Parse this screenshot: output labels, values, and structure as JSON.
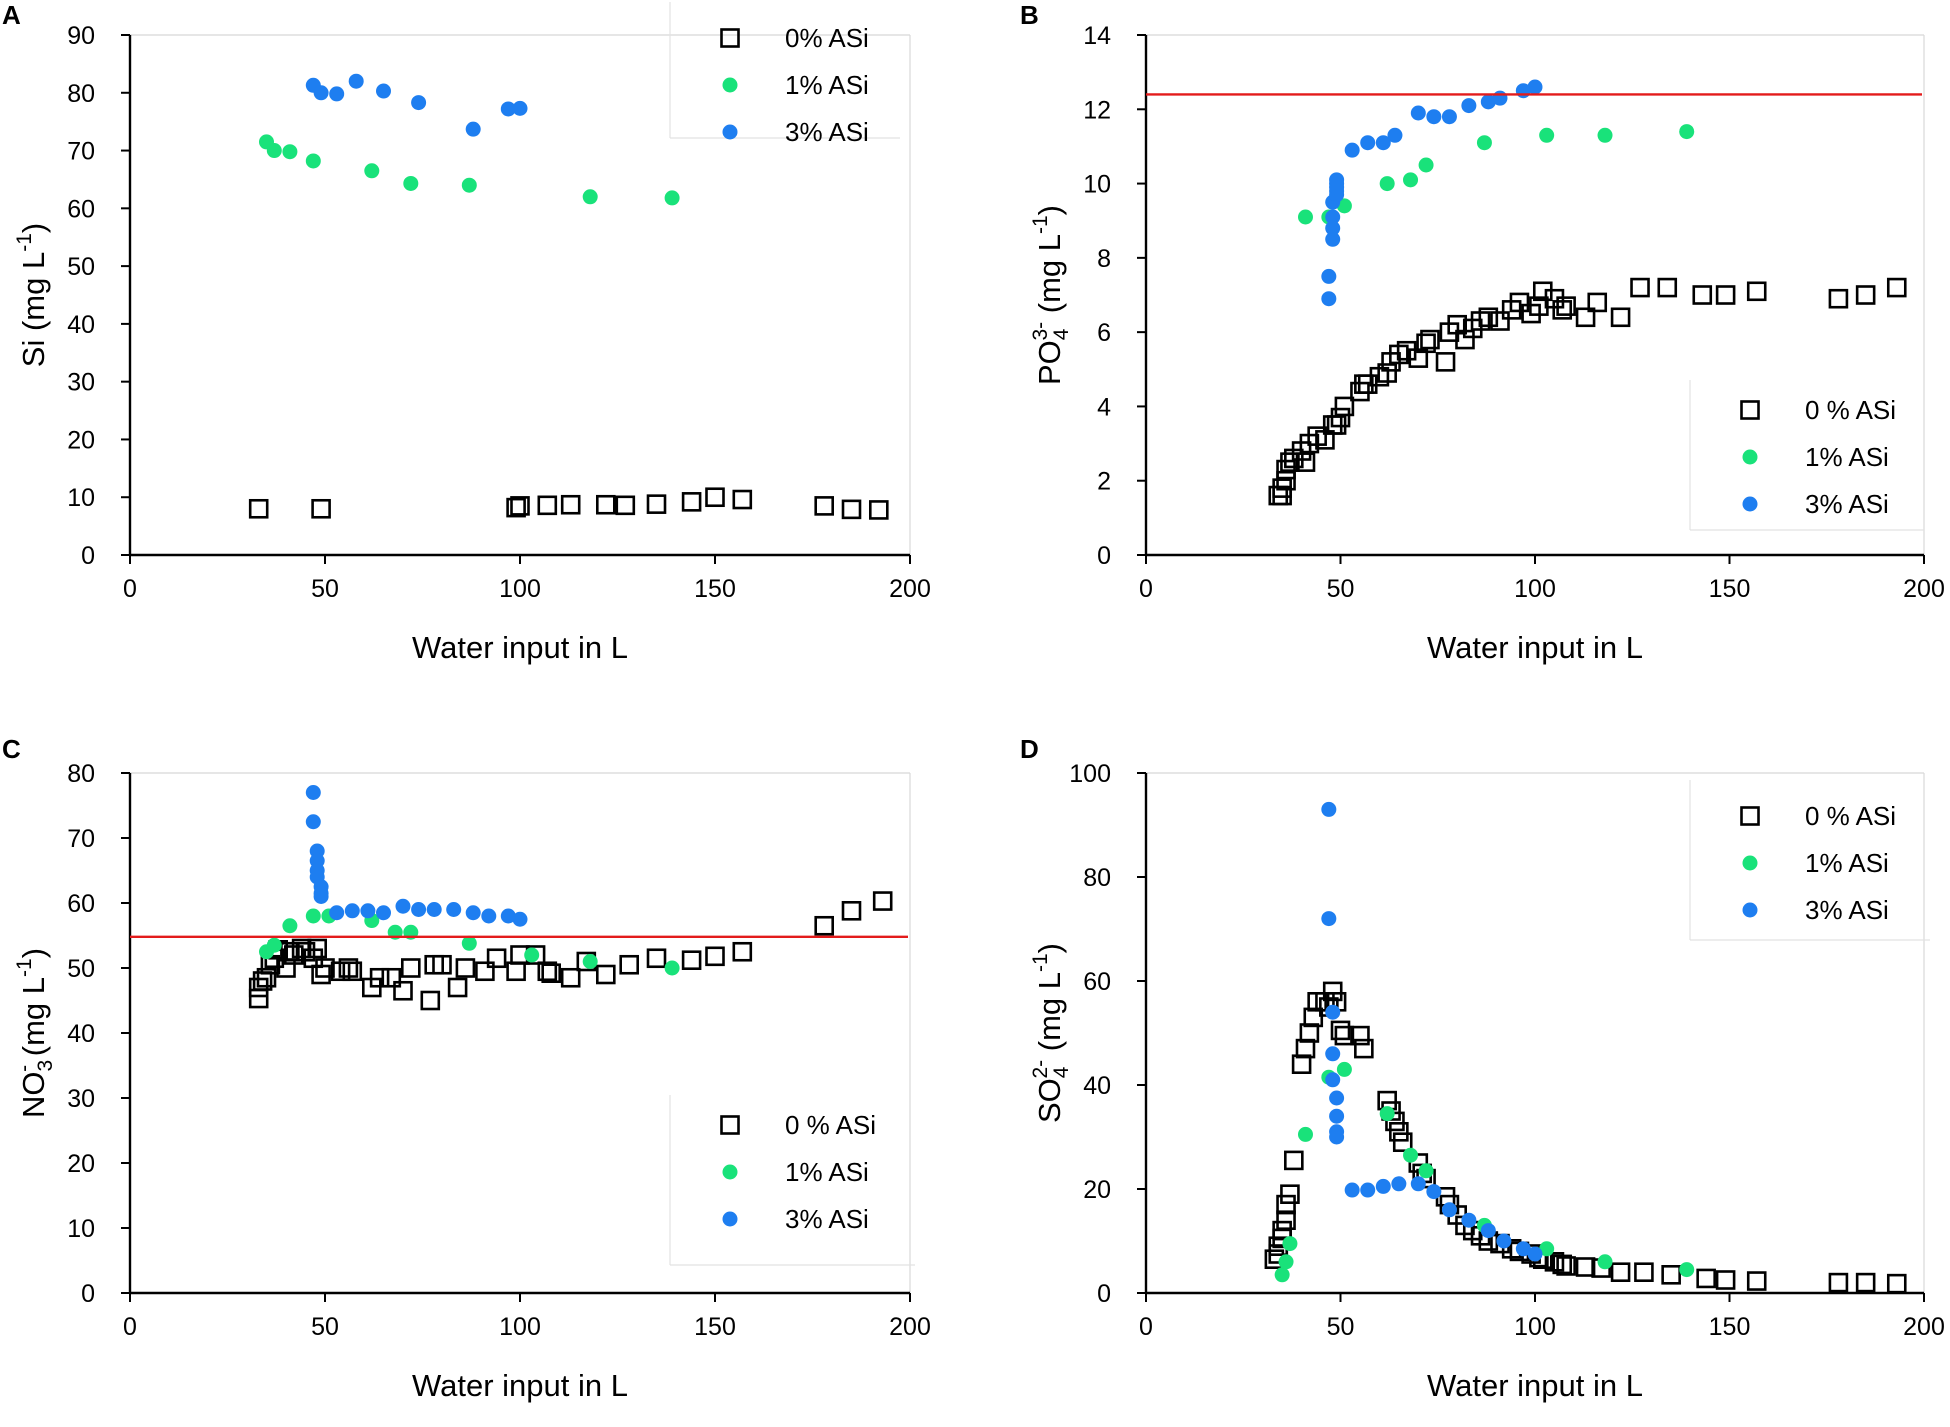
{
  "colors": {
    "axis": "#000000",
    "series0": "#000000",
    "series1": "#19e27a",
    "series3": "#1e7ef0",
    "refline": "#e31b1b"
  },
  "chart_data": [
    {
      "id": "A",
      "panel_label": "A",
      "type": "scatter",
      "xlabel": "Water input in L",
      "ylabel_parts": [
        "Si (mg L",
        "-1",
        ")"
      ],
      "xlim": [
        0,
        200
      ],
      "ylim": [
        0,
        90
      ],
      "xticks": [
        0,
        50,
        100,
        150,
        200
      ],
      "yticks": [
        0,
        10,
        20,
        30,
        40,
        50,
        60,
        70,
        80,
        90
      ],
      "legend": [
        "0% ASi",
        "1% ASi",
        "3% ASi"
      ],
      "legend_pos": "top-right",
      "refline": null,
      "series": [
        {
          "name": "0% ASi",
          "marker": "square",
          "x": [
            33,
            49,
            99,
            100,
            107,
            113,
            122,
            127,
            135,
            144,
            150,
            157,
            178,
            185,
            192
          ],
          "y": [
            8,
            8,
            8.2,
            8.5,
            8.6,
            8.7,
            8.7,
            8.6,
            8.8,
            9.2,
            10,
            9.6,
            8.5,
            7.9,
            7.8
          ]
        },
        {
          "name": "1% ASi",
          "marker": "dot",
          "x": [
            35,
            37,
            41,
            47,
            62,
            72,
            87,
            118,
            139
          ],
          "y": [
            71.5,
            70,
            69.8,
            68.2,
            66.5,
            64.3,
            64,
            62,
            61.8
          ]
        },
        {
          "name": "3% ASi",
          "marker": "dot",
          "x": [
            47,
            49,
            53,
            58,
            65,
            74,
            88,
            97,
            100
          ],
          "y": [
            81.3,
            80,
            79.8,
            82,
            80.3,
            78.3,
            73.7,
            77.2,
            77.3
          ]
        }
      ]
    },
    {
      "id": "B",
      "panel_label": "B",
      "type": "scatter",
      "xlabel": "Water input in L",
      "ylabel_parts": [
        "PO",
        "4",
        "3-",
        " (mg L",
        "-1",
        ")"
      ],
      "xlim": [
        0,
        200
      ],
      "ylim": [
        0,
        14
      ],
      "xticks": [
        0,
        50,
        100,
        150,
        200
      ],
      "yticks": [
        0,
        2,
        4,
        6,
        8,
        10,
        12,
        14
      ],
      "legend": [
        "0 % ASi",
        "1% ASi",
        "3% ASi"
      ],
      "legend_pos": "bottom-right",
      "refline": 12.4,
      "series": [
        {
          "name": "0 % ASi",
          "marker": "square",
          "x": [
            34,
            35,
            35,
            36,
            36,
            37,
            38,
            40,
            41,
            42,
            44,
            46,
            48,
            49,
            50,
            51,
            55,
            56,
            57,
            60,
            62,
            63,
            65,
            67,
            70,
            72,
            73,
            77,
            78,
            80,
            82,
            84,
            86,
            88,
            91,
            94,
            96,
            99,
            101,
            102,
            105,
            107,
            108,
            113,
            116,
            122,
            127,
            134,
            143,
            149,
            157,
            178,
            185,
            193
          ],
          "y": [
            1.6,
            1.6,
            1.8,
            2,
            2.3,
            2.5,
            2.6,
            2.8,
            2.5,
            3,
            3.2,
            3.1,
            3.5,
            3.5,
            3.7,
            4,
            4.4,
            4.6,
            4.6,
            4.8,
            4.9,
            5.2,
            5.4,
            5.5,
            5.3,
            5.7,
            5.8,
            5.2,
            6,
            6.2,
            5.8,
            6.1,
            6.3,
            6.4,
            6.3,
            6.6,
            6.8,
            6.5,
            6.7,
            7.1,
            6.9,
            6.6,
            6.7,
            6.4,
            6.8,
            6.4,
            7.2,
            7.2,
            7,
            7,
            7.1,
            6.9,
            7,
            7.2
          ]
        },
        {
          "name": "1% ASi",
          "marker": "dot",
          "x": [
            41,
            47,
            51,
            62,
            68,
            72,
            87,
            103,
            118,
            139
          ],
          "y": [
            9.1,
            9.1,
            9.4,
            10,
            10.1,
            10.5,
            11.1,
            11.3,
            11.3,
            11.4
          ]
        },
        {
          "name": "3% ASi",
          "marker": "dot",
          "x": [
            47,
            47,
            48,
            48,
            48,
            48,
            49,
            49,
            49,
            49,
            49,
            53,
            57,
            61,
            64,
            70,
            74,
            78,
            83,
            88,
            91,
            97,
            100
          ],
          "y": [
            6.9,
            7.5,
            8.5,
            8.8,
            9.1,
            9.5,
            9.7,
            9.8,
            9.9,
            10,
            10.1,
            10.9,
            11.1,
            11.1,
            11.3,
            11.9,
            11.8,
            11.8,
            12.1,
            12.2,
            12.3,
            12.5,
            12.6
          ]
        }
      ]
    },
    {
      "id": "C",
      "panel_label": "C",
      "type": "scatter",
      "xlabel": "Water input in L",
      "ylabel_parts": [
        "NO",
        "3",
        "-",
        " (mg L",
        "-1",
        ")"
      ],
      "xlim": [
        0,
        200
      ],
      "ylim": [
        0,
        80
      ],
      "xticks": [
        0,
        50,
        100,
        150,
        200
      ],
      "yticks": [
        0,
        10,
        20,
        30,
        40,
        50,
        60,
        70,
        80
      ],
      "legend": [
        "0 % ASi",
        "1% ASi",
        "3% ASi"
      ],
      "legend_pos": "bottom-right",
      "refline": 54.8,
      "series": [
        {
          "name": "0 % ASi",
          "marker": "square",
          "x": [
            33,
            33,
            34,
            35,
            36,
            37,
            38,
            40,
            41,
            42,
            44,
            45,
            47,
            48,
            49,
            50,
            54,
            56,
            57,
            62,
            64,
            67,
            70,
            72,
            77,
            78,
            80,
            84,
            86,
            91,
            94,
            99,
            100,
            104,
            107,
            108,
            113,
            117,
            122,
            128,
            135,
            144,
            150,
            157,
            178,
            185,
            193
          ],
          "y": [
            47,
            45.3,
            48,
            48.5,
            50.5,
            51.5,
            52.8,
            50,
            52.5,
            52,
            53,
            52.5,
            51.5,
            53,
            49,
            50,
            49.5,
            50,
            49.5,
            47,
            48.5,
            48.5,
            46.5,
            50,
            45,
            50.5,
            50.5,
            47,
            50,
            49.5,
            51.5,
            49.5,
            52,
            52,
            49.5,
            49.2,
            48.5,
            51,
            49,
            50.5,
            51.5,
            51.2,
            51.8,
            52.5,
            56.5,
            58.8,
            60.3
          ]
        },
        {
          "name": "1% ASi",
          "marker": "dot",
          "x": [
            35,
            37,
            41,
            47,
            51,
            62,
            68,
            72,
            87,
            103,
            118,
            139
          ],
          "y": [
            52.5,
            53.5,
            56.5,
            58,
            58,
            57.3,
            55.5,
            55.5,
            53.8,
            52,
            51,
            50
          ]
        },
        {
          "name": "3% ASi",
          "marker": "dot",
          "x": [
            47,
            47,
            48,
            48,
            48,
            48,
            49,
            49,
            49,
            53,
            57,
            61,
            65,
            70,
            74,
            78,
            83,
            88,
            92,
            97,
            100
          ],
          "y": [
            77,
            72.5,
            68,
            66.5,
            65,
            64,
            62.5,
            61.5,
            61,
            58.5,
            58.8,
            58.8,
            58.5,
            59.5,
            59,
            59,
            59,
            58.5,
            58,
            58,
            57.5
          ]
        }
      ]
    },
    {
      "id": "D",
      "panel_label": "D",
      "type": "scatter",
      "xlabel": "Water input in L",
      "ylabel_parts": [
        "SO",
        "4",
        "2-",
        " (mg L",
        "-1",
        ")"
      ],
      "xlim": [
        0,
        200
      ],
      "ylim": [
        0,
        100
      ],
      "xticks": [
        0,
        50,
        100,
        150,
        200
      ],
      "yticks": [
        0,
        20,
        40,
        60,
        80,
        100
      ],
      "legend": [
        "0 % ASi",
        "1% ASi",
        "3% ASi"
      ],
      "legend_pos": "top-right",
      "refline": null,
      "series": [
        {
          "name": "0 % ASi",
          "marker": "square",
          "x": [
            33,
            34,
            34,
            35,
            35,
            36,
            36,
            37,
            38,
            40,
            41,
            42,
            43,
            44,
            46,
            47,
            48,
            49,
            50,
            51,
            55,
            56,
            62,
            63,
            64,
            65,
            66,
            70,
            71,
            72,
            77,
            78,
            80,
            82,
            84,
            86,
            88,
            91,
            94,
            96,
            99,
            101,
            102,
            105,
            107,
            108,
            113,
            117,
            122,
            128,
            135,
            144,
            149,
            157,
            178,
            185,
            193
          ],
          "y": [
            6.5,
            7.5,
            9,
            10.5,
            12,
            14,
            17,
            19,
            25.5,
            44,
            47,
            50,
            53,
            56,
            56,
            55,
            58,
            56,
            50.5,
            49.5,
            49.5,
            47,
            37,
            35,
            33,
            31,
            29,
            25,
            23,
            22,
            18.5,
            17,
            15,
            13,
            12,
            11,
            10,
            9.5,
            8.5,
            8,
            7.5,
            6.8,
            6.5,
            6,
            5.5,
            5.2,
            5,
            4.8,
            4,
            4,
            3.5,
            2.8,
            2.5,
            2.3,
            2,
            2,
            1.8
          ]
        },
        {
          "name": "1% ASi",
          "marker": "dot",
          "x": [
            35,
            36,
            37,
            41,
            47,
            51,
            62,
            68,
            72,
            87,
            103,
            118,
            139
          ],
          "y": [
            3.5,
            6,
            9.5,
            30.5,
            41.5,
            43,
            34.5,
            26.5,
            23.5,
            13,
            8.5,
            6,
            4.5
          ]
        },
        {
          "name": "3% ASi",
          "marker": "dot",
          "x": [
            47,
            47,
            48,
            48,
            48,
            49,
            49,
            49,
            49,
            53,
            57,
            61,
            65,
            70,
            74,
            78,
            83,
            88,
            92,
            97,
            100
          ],
          "y": [
            93,
            72,
            54,
            46,
            41,
            37.5,
            34,
            31,
            30,
            19.8,
            19.8,
            20.5,
            21,
            21,
            19.5,
            16,
            14,
            12,
            10,
            8.5,
            7.5
          ]
        }
      ]
    }
  ]
}
